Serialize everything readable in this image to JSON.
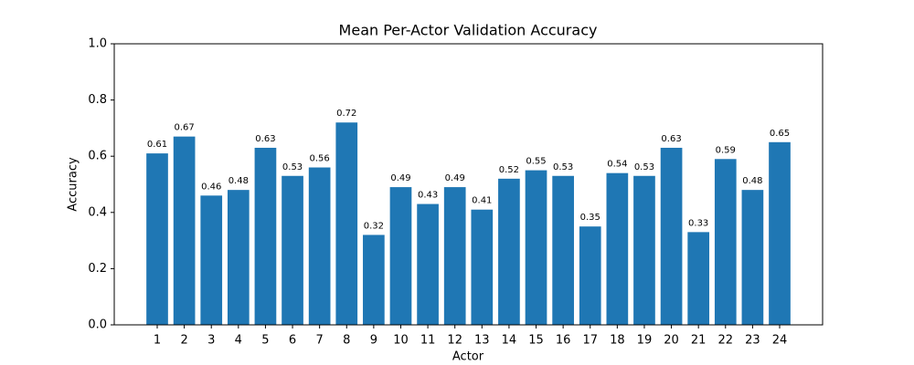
{
  "chart_data": {
    "type": "bar",
    "title": "Mean Per-Actor Validation Accuracy",
    "x_label": "Actor",
    "y_label": "Accuracy",
    "categories": [
      "1",
      "2",
      "3",
      "4",
      "5",
      "6",
      "7",
      "8",
      "9",
      "10",
      "11",
      "12",
      "13",
      "14",
      "15",
      "16",
      "17",
      "18",
      "19",
      "20",
      "21",
      "22",
      "23",
      "24"
    ],
    "values": [
      0.61,
      0.67,
      0.46,
      0.48,
      0.63,
      0.53,
      0.56,
      0.72,
      0.32,
      0.49,
      0.43,
      0.49,
      0.41,
      0.52,
      0.55,
      0.53,
      0.35,
      0.54,
      0.53,
      0.63,
      0.33,
      0.59,
      0.48,
      0.65
    ],
    "color": "#1f77b4",
    "ylim": [
      0,
      1
    ],
    "yticks": [
      {
        "value": 0,
        "label": "0.0"
      },
      0.2,
      0.4,
      0.6,
      0.8,
      {
        "value": 1,
        "label": "1.0"
      }
    ],
    "grid": false
  }
}
